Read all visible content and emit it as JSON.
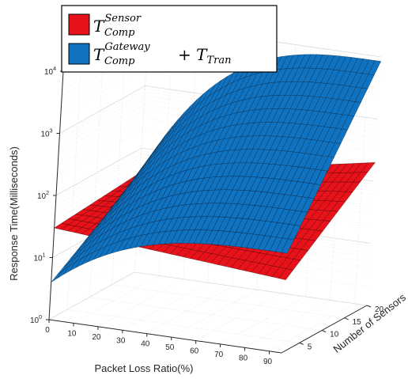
{
  "chart_data": {
    "type": "surface3d",
    "xlabel": "Packet Loss Ratio(%)",
    "ylabel": "Number of Sensors",
    "zlabel": "Response Time(Milliseconds)",
    "x_ticks": [
      "0",
      "10",
      "20",
      "30",
      "40",
      "50",
      "60",
      "70",
      "80",
      "90"
    ],
    "y_ticks": [
      "5",
      "10",
      "15",
      "20"
    ],
    "z_ticks": [
      {
        "base": "10",
        "exp": "0"
      },
      {
        "base": "10",
        "exp": "1"
      },
      {
        "base": "10",
        "exp": "2"
      },
      {
        "base": "10",
        "exp": "3"
      },
      {
        "base": "10",
        "exp": "4"
      }
    ],
    "xlim": [
      0,
      95
    ],
    "ylim": [
      1,
      20
    ],
    "zlim": [
      1,
      10000
    ],
    "z_scale": "log",
    "grid": true,
    "legend_position": "top-left",
    "series": [
      {
        "name_main": "T",
        "name_sup": "Sensor",
        "name_sub": "Comp",
        "color": "#e8121b",
        "corners": [
          {
            "x": 0,
            "y": 1,
            "z": 30
          },
          {
            "x": 95,
            "y": 1,
            "z": 15
          },
          {
            "x": 0,
            "y": 20,
            "z": 40
          },
          {
            "x": 95,
            "y": 20,
            "z": 200
          }
        ]
      },
      {
        "name_main": "T",
        "name_sup": "Gateway",
        "name_sub": "Comp",
        "name_extra_main": "+ T",
        "name_extra_sub": "Tran",
        "color": "#0f73c2",
        "corners": [
          {
            "x": 0,
            "y": 1,
            "z": 4
          },
          {
            "x": 95,
            "y": 1,
            "z": 40
          },
          {
            "x": 0,
            "y": 20,
            "z": 40
          },
          {
            "x": 95,
            "y": 20,
            "z": 8500
          }
        ]
      }
    ]
  }
}
